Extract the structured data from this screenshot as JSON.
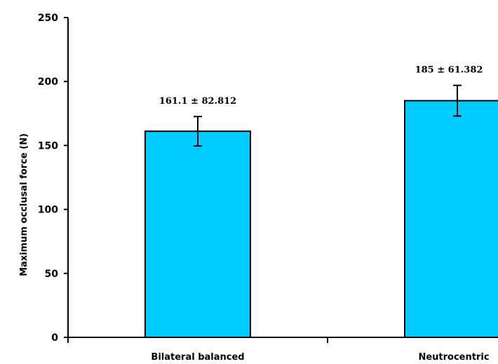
{
  "chart_data": {
    "type": "bar",
    "categories": [
      "Bilateral balanced",
      "Neutrocentric"
    ],
    "values": [
      161.1,
      185
    ],
    "error_bars": [
      11.5,
      12
    ],
    "data_labels": [
      "161.1 ± 82.812",
      "185 ± 61.382"
    ],
    "ylabel": "Maximum occlusal force (N)",
    "xlabel": "",
    "ylim": [
      0,
      250
    ],
    "yticks": [
      0,
      50,
      100,
      150,
      200,
      250
    ],
    "bar_color": "#00ccff",
    "grid": false,
    "legend": "none"
  }
}
